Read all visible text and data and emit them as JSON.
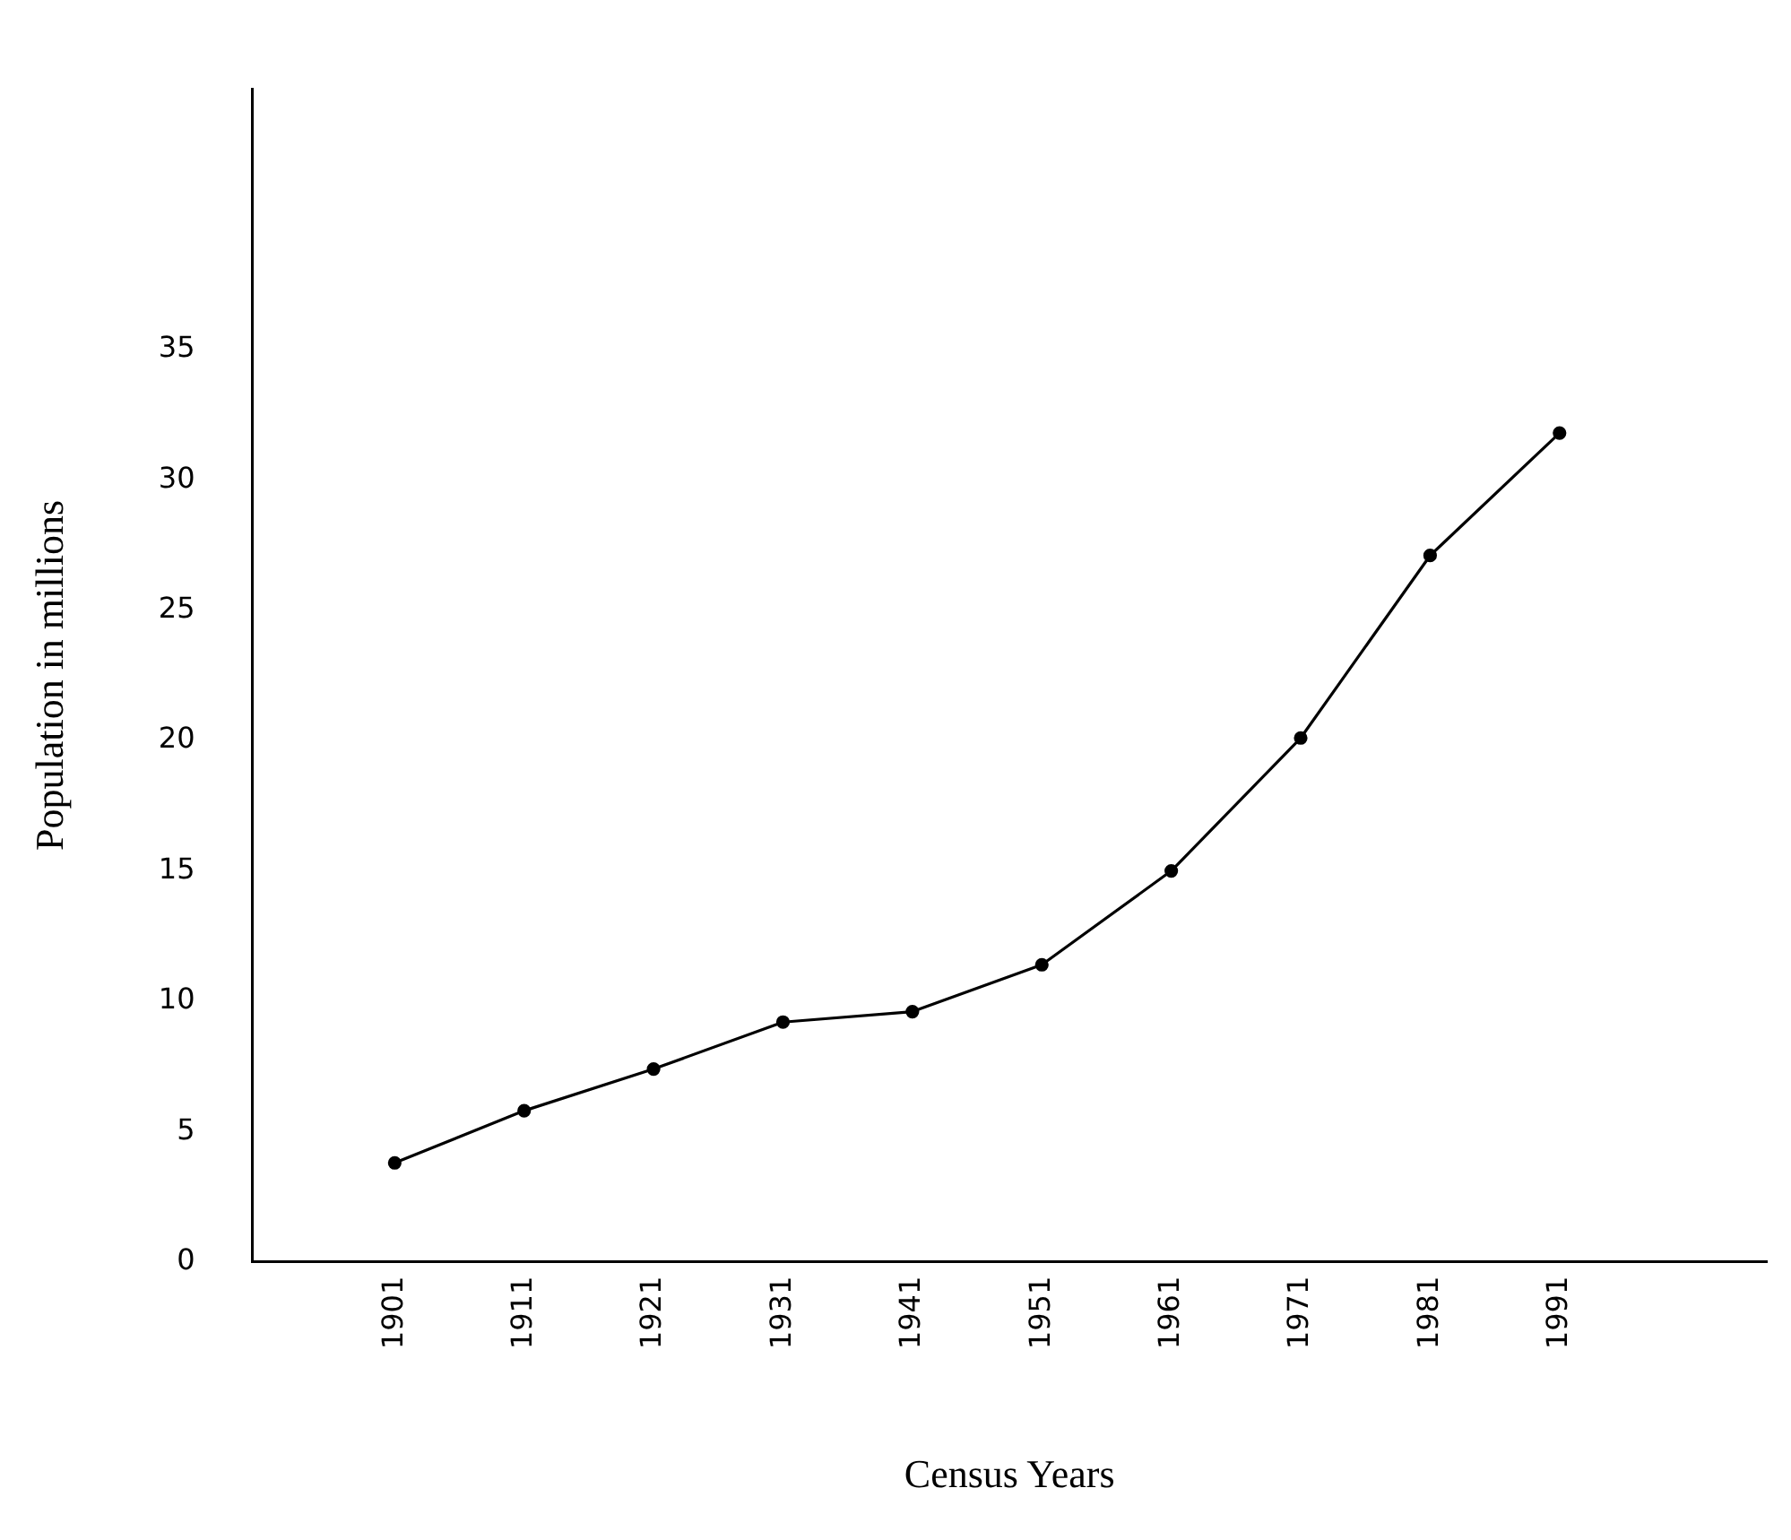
{
  "chart_data": {
    "type": "line",
    "xlabel": "Census Years",
    "ylabel": "Population in millions",
    "x": [
      1901,
      1911,
      1921,
      1931,
      1941,
      1951,
      1961,
      1971,
      1981,
      1991
    ],
    "series": [
      {
        "color": "#000000",
        "values": [
          3.8,
          5.8,
          7.4,
          9.2,
          9.6,
          11.4,
          15.0,
          20.1,
          27.1,
          31.8
        ]
      }
    ],
    "xlim": [
      1890,
      2007
    ],
    "xticks": [
      1901,
      1911,
      1921,
      1931,
      1941,
      1951,
      1961,
      1971,
      1981,
      1991
    ],
    "ylim": [
      0,
      45
    ],
    "yticks": [
      0,
      5,
      10,
      15,
      20,
      25,
      30,
      35
    ],
    "grid": false,
    "legend": false,
    "marker": "circle",
    "line_style": "solid"
  }
}
